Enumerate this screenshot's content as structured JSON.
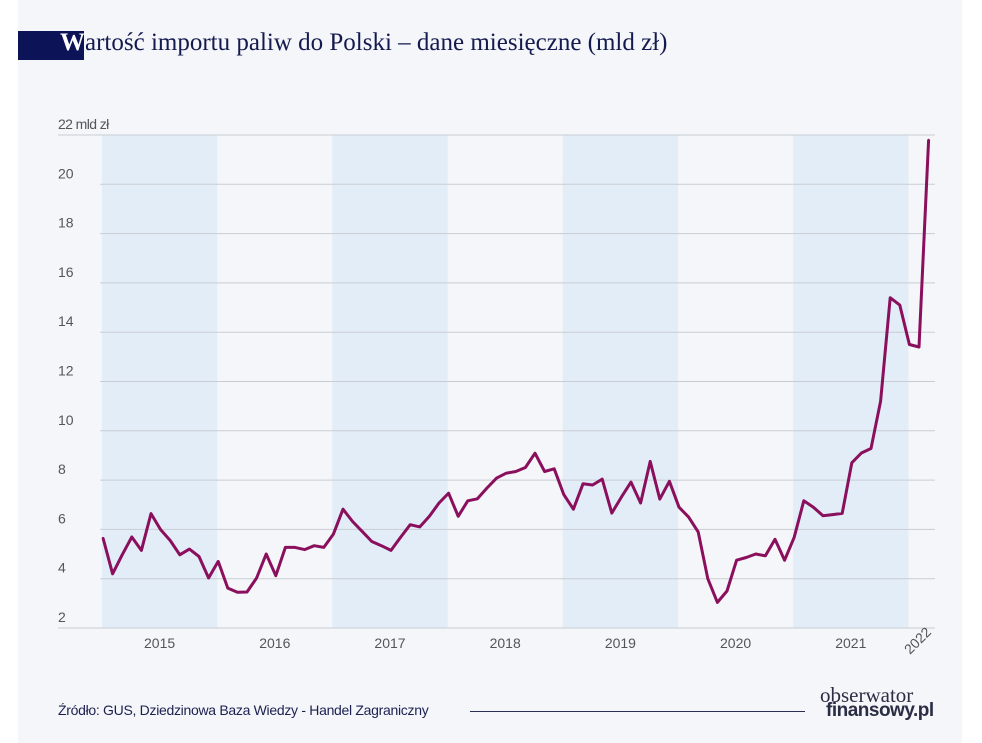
{
  "title": {
    "first_letter": "W",
    "rest": "artość importu paliw do Polski – dane miesięczne (mld zł)"
  },
  "source": "Źródło: GUS, Dziedzinowa Baza Wiedzy - Handel Zagraniczny",
  "logo": {
    "line1": "obserwator",
    "line2": "finansowy.pl"
  },
  "colors": {
    "line": "#8a0f5c",
    "band": "#e3edf8",
    "title_block": "#0c1357",
    "grid": "#c9cdd3"
  },
  "chart_data": {
    "type": "line",
    "title": "Wartość importu paliw do Polski – dane miesięczne (mld zł)",
    "ylabel": "",
    "ylim": [
      2,
      22
    ],
    "yticks": [
      "2",
      "4",
      "6",
      "8",
      "10",
      "12",
      "14",
      "16",
      "18",
      "20",
      "22 mld zł"
    ],
    "xtick_labels": [
      "2015",
      "2016",
      "2017",
      "2018",
      "2019",
      "2020",
      "2021",
      "2022"
    ],
    "x_start": "2015-01",
    "x_end": "2022-03",
    "frequency": "monthly",
    "grid": true,
    "series": [
      {
        "values": [
          5.65,
          4.2,
          4.97,
          5.69,
          5.15,
          6.64,
          5.99,
          5.55,
          4.97,
          5.2,
          4.9,
          4.03,
          4.7,
          3.62,
          3.45,
          3.46,
          4.03,
          5.0,
          4.12,
          5.27,
          5.27,
          5.18,
          5.34,
          5.27,
          5.81,
          6.82,
          6.32,
          5.92,
          5.51,
          5.34,
          5.15,
          5.68,
          6.19,
          6.1,
          6.53,
          7.07,
          7.47,
          6.53,
          7.16,
          7.24,
          7.68,
          8.08,
          8.28,
          8.35,
          8.51,
          9.09,
          8.35,
          8.46,
          7.41,
          6.82,
          7.85,
          7.8,
          8.04,
          6.66,
          7.31,
          7.92,
          7.07,
          8.76,
          7.23,
          7.95,
          6.9,
          6.5,
          5.9,
          4.0,
          3.04,
          3.5,
          4.75,
          4.86,
          5.0,
          4.93,
          5.6,
          4.75,
          5.68,
          7.16,
          6.9,
          6.55,
          6.6,
          6.65,
          8.7,
          9.1,
          9.28,
          11.2,
          15.4,
          15.1,
          13.5,
          13.4,
          21.8
        ]
      }
    ]
  }
}
